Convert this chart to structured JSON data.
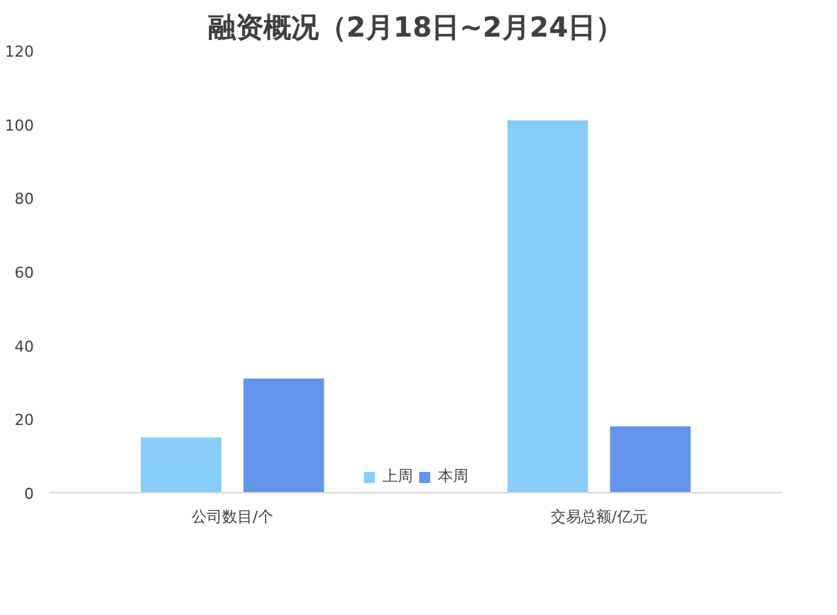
{
  "chart_data": {
    "type": "bar",
    "title": "融资概况（2月18日~2月24日）",
    "categories": [
      "公司数目/个",
      "交易总额/亿元"
    ],
    "series": [
      {
        "name": "上周",
        "color": "#87cefa",
        "values": [
          15,
          101
        ]
      },
      {
        "name": "本周",
        "color": "#6495ed",
        "values": [
          31,
          18
        ]
      }
    ],
    "ylim": [
      0,
      120
    ],
    "yticks": [
      0,
      20,
      40,
      60,
      80,
      100,
      120
    ],
    "grid": false,
    "legend": "bottom"
  }
}
